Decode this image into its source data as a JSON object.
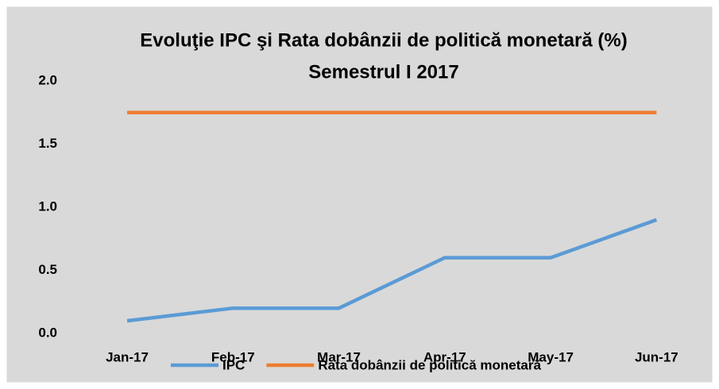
{
  "chart_data": {
    "type": "line",
    "title": "Evoluţie IPC şi Rata dobânzii de politică monetară (%)",
    "subtitle": "Semestrul I 2017",
    "categories": [
      "Jan-17",
      "Feb-17",
      "Mar-17",
      "Apr-17",
      "May-17",
      "Jun-17"
    ],
    "series": [
      {
        "name": "IPC",
        "color": "#5b9bd5",
        "values": [
          0.1,
          0.2,
          0.2,
          0.6,
          0.6,
          0.9
        ]
      },
      {
        "name": "Rata dobânzii de politică monetară",
        "color": "#ed7d31",
        "values": [
          1.75,
          1.75,
          1.75,
          1.75,
          1.75,
          1.75
        ]
      }
    ],
    "ylim": [
      0,
      2
    ],
    "yticks": [
      {
        "value": 0,
        "label": "0.0"
      },
      {
        "value": 0.5,
        "label": "0.5"
      },
      {
        "value": 1,
        "label": "1.0"
      },
      {
        "value": 1.5,
        "label": "1.5"
      },
      {
        "value": 2,
        "label": "2.0"
      }
    ],
    "grid": false,
    "legend": "bottom"
  }
}
